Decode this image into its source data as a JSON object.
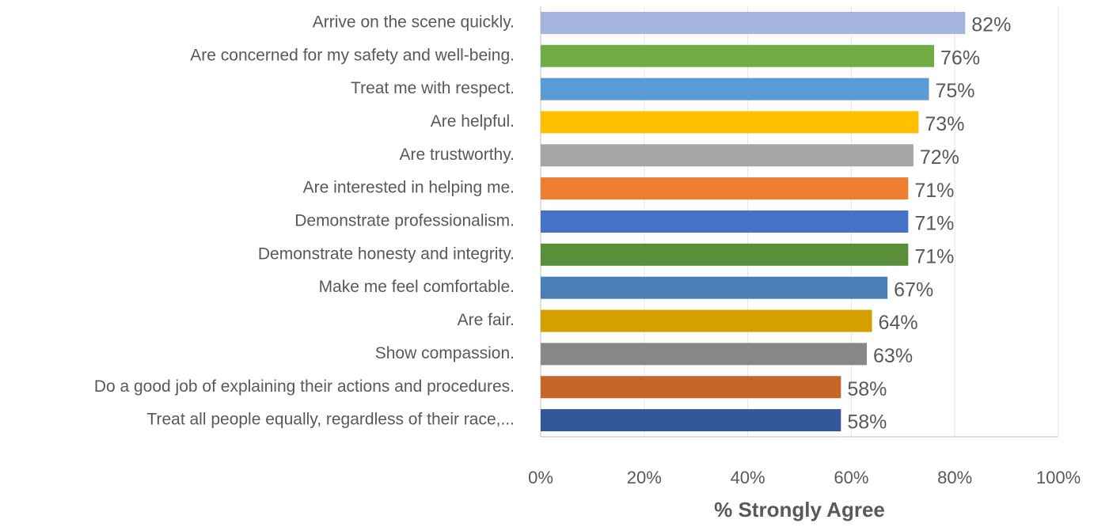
{
  "chart_data": {
    "type": "barh",
    "xlabel": "% Strongly Agree",
    "categories": [
      "Arrive on the scene quickly.",
      "Are concerned for my safety and well-being.",
      "Treat me with respect.",
      "Are helpful.",
      "Are trustworthy.",
      "Are interested in helping me.",
      "Demonstrate professionalism.",
      "Demonstrate honesty and integrity.",
      "Make me feel comfortable.",
      "Are fair.",
      "Show compassion.",
      "Do a good job of explaining their actions and procedures.",
      "Treat all people equally, regardless of their race,..."
    ],
    "values": [
      82,
      76,
      75,
      73,
      72,
      71,
      71,
      71,
      67,
      64,
      63,
      58,
      58
    ],
    "value_labels": [
      "82%",
      "76%",
      "75%",
      "73%",
      "72%",
      "71%",
      "71%",
      "71%",
      "67%",
      "64%",
      "63%",
      "58%",
      "58%"
    ],
    "colors": [
      "#a5b4dc",
      "#70ad47",
      "#5b9bd5",
      "#ffc000",
      "#a5a5a5",
      "#ed7d31",
      "#4472c4",
      "#5a8f3a",
      "#4a7fb5",
      "#d4a000",
      "#888888",
      "#c5652a",
      "#34579c"
    ],
    "xlim": [
      0,
      100
    ],
    "xticks": [
      {
        "value": 0,
        "label": "0%"
      },
      {
        "value": 20,
        "label": "20%"
      },
      {
        "value": 40,
        "label": "40%"
      },
      {
        "value": 60,
        "label": "60%"
      },
      {
        "value": 80,
        "label": "80%"
      },
      {
        "value": 100,
        "label": "100%"
      }
    ],
    "grid": true
  }
}
